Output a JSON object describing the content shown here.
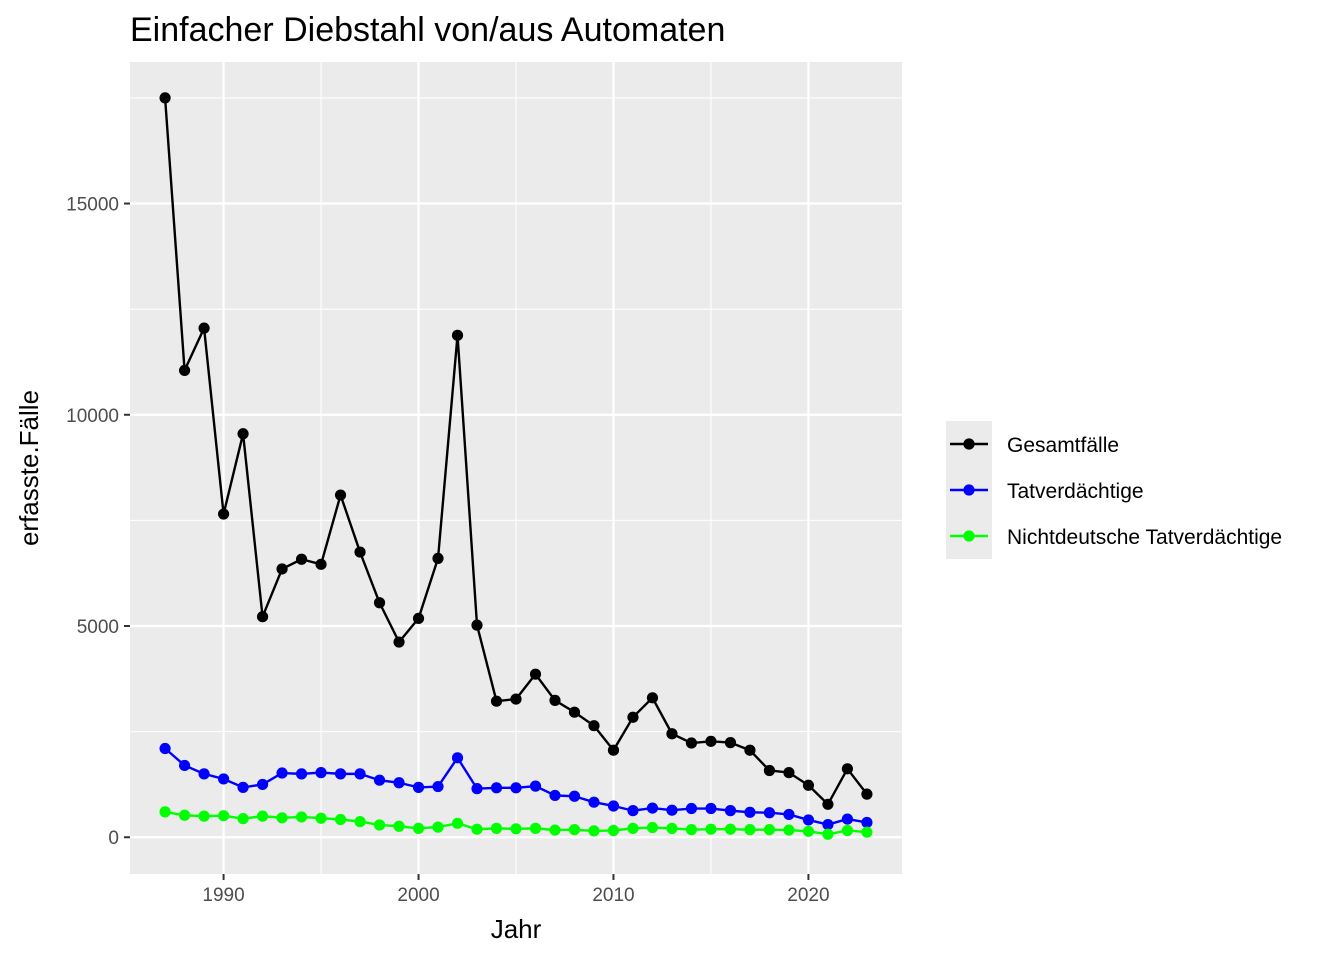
{
  "chart_data": {
    "type": "line",
    "title": "Einfacher Diebstahl von/aus Automaten",
    "xlabel": "Jahr",
    "ylabel": "erfasste.Fälle",
    "x": [
      1987,
      1988,
      1989,
      1990,
      1991,
      1992,
      1993,
      1994,
      1995,
      1996,
      1997,
      1998,
      1999,
      2000,
      2001,
      2002,
      2003,
      2004,
      2005,
      2006,
      2007,
      2008,
      2009,
      2010,
      2011,
      2012,
      2013,
      2014,
      2015,
      2016,
      2017,
      2018,
      2019,
      2020,
      2021,
      2022,
      2023
    ],
    "xlim": [
      1985.2,
      2024.8
    ],
    "ylim": [
      -870,
      18350
    ],
    "xticks": [
      1990,
      2000,
      2010,
      2020
    ],
    "yticks": [
      0,
      5000,
      10000,
      15000
    ],
    "grid": true,
    "legend_position": "right",
    "series": [
      {
        "name": "Gesamtfälle",
        "color": "#000000",
        "values": [
          17500,
          11050,
          12050,
          7650,
          9550,
          5220,
          6350,
          6580,
          6460,
          8100,
          6750,
          5550,
          4620,
          5180,
          6600,
          11880,
          5020,
          3220,
          3270,
          3860,
          3240,
          2960,
          2640,
          2060,
          2840,
          3300,
          2450,
          2230,
          2270,
          2240,
          2060,
          1580,
          1530,
          1230,
          780,
          1620,
          1020
        ]
      },
      {
        "name": "Tatverdächtige",
        "color": "#0000ff",
        "values": [
          2100,
          1700,
          1500,
          1380,
          1180,
          1250,
          1520,
          1500,
          1530,
          1500,
          1500,
          1350,
          1290,
          1180,
          1200,
          1880,
          1150,
          1170,
          1170,
          1210,
          990,
          970,
          830,
          740,
          630,
          690,
          640,
          680,
          680,
          630,
          590,
          580,
          540,
          410,
          300,
          430,
          350
        ]
      },
      {
        "name": "Nichtdeutsche Tatverdächtige",
        "color": "#00ff00",
        "values": [
          600,
          520,
          500,
          510,
          440,
          500,
          460,
          480,
          450,
          420,
          370,
          290,
          260,
          210,
          240,
          330,
          190,
          210,
          200,
          210,
          170,
          180,
          150,
          160,
          210,
          230,
          210,
          180,
          190,
          190,
          180,
          180,
          170,
          140,
          70,
          160,
          120
        ]
      }
    ]
  }
}
